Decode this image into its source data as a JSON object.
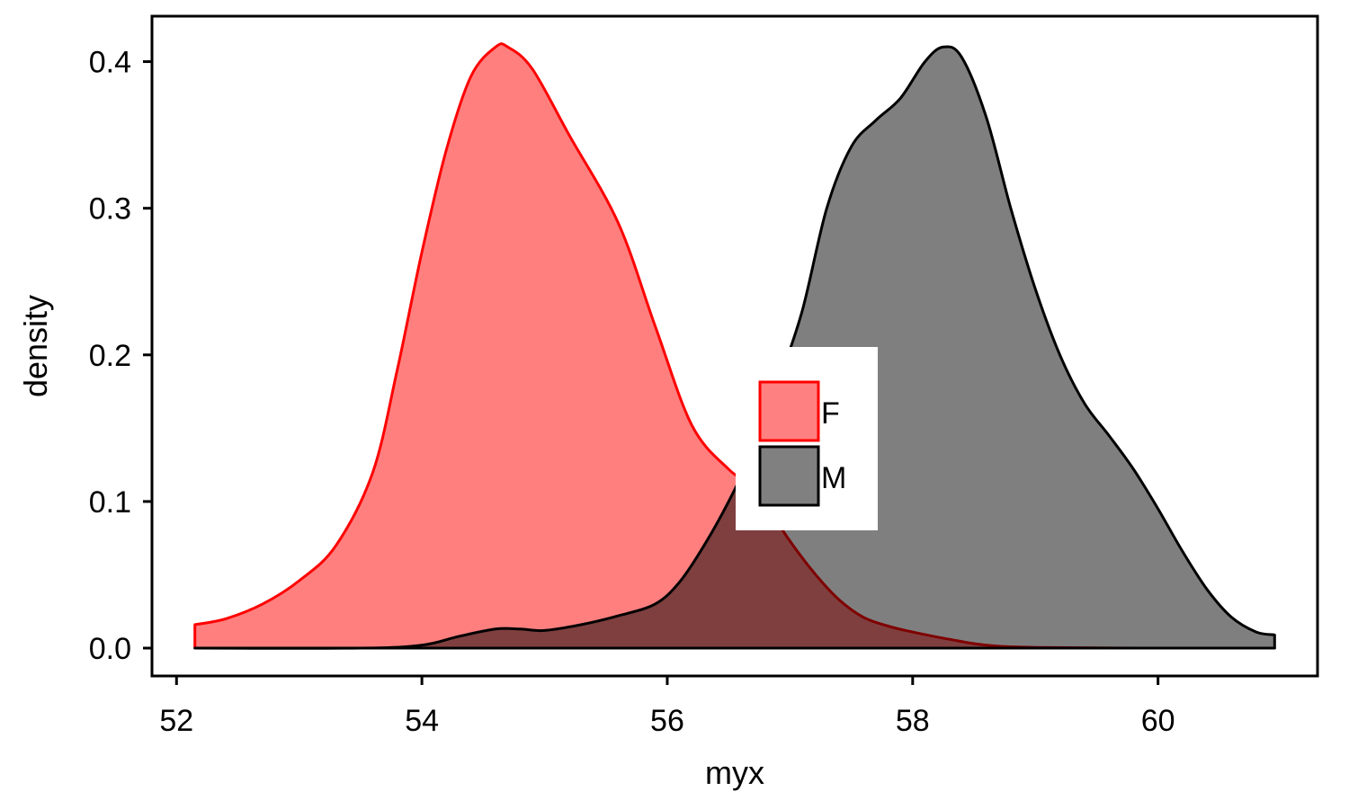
{
  "chart_data": {
    "type": "area",
    "subtype": "density",
    "xlabel": "myx",
    "ylabel": "density",
    "xlim": [
      51.8,
      61.3
    ],
    "ylim": [
      -0.019,
      0.431
    ],
    "x_ticks": [
      52,
      54,
      56,
      58,
      60
    ],
    "x_tick_labels": [
      "52",
      "54",
      "56",
      "58",
      "60"
    ],
    "y_ticks": [
      0.0,
      0.1,
      0.2,
      0.3,
      0.4
    ],
    "y_tick_labels": [
      "0.0",
      "0.1",
      "0.2",
      "0.3",
      "0.4"
    ],
    "grid": false,
    "legend": {
      "position": "center",
      "entries": [
        {
          "label": "F",
          "fill": "#ff8080",
          "stroke": "#ff0000"
        },
        {
          "label": "M",
          "fill": "#808080",
          "stroke": "#000000"
        }
      ]
    },
    "series": [
      {
        "name": "F",
        "fill": "#ff0000",
        "fill_opacity": 0.5,
        "stroke": "#ff0000",
        "points": [
          [
            52.15,
            0.016
          ],
          [
            52.4,
            0.02
          ],
          [
            52.7,
            0.03
          ],
          [
            53.0,
            0.046
          ],
          [
            53.3,
            0.07
          ],
          [
            53.6,
            0.12
          ],
          [
            53.8,
            0.19
          ],
          [
            54.0,
            0.27
          ],
          [
            54.2,
            0.34
          ],
          [
            54.4,
            0.39
          ],
          [
            54.6,
            0.41
          ],
          [
            54.7,
            0.41
          ],
          [
            54.9,
            0.395
          ],
          [
            55.2,
            0.35
          ],
          [
            55.6,
            0.29
          ],
          [
            55.9,
            0.22
          ],
          [
            56.2,
            0.152
          ],
          [
            56.5,
            0.122
          ],
          [
            56.7,
            0.11
          ],
          [
            56.85,
            0.092
          ],
          [
            57.0,
            0.073
          ],
          [
            57.2,
            0.051
          ],
          [
            57.4,
            0.033
          ],
          [
            57.6,
            0.021
          ],
          [
            57.8,
            0.015
          ],
          [
            58.0,
            0.011
          ],
          [
            58.3,
            0.006
          ],
          [
            58.6,
            0.002
          ],
          [
            59.0,
            0.0005
          ],
          [
            60.0,
            0.0
          ],
          [
            60.95,
            0.0
          ]
        ]
      },
      {
        "name": "M",
        "fill": "#000000",
        "fill_opacity": 0.5,
        "stroke": "#000000",
        "points": [
          [
            52.15,
            0.0
          ],
          [
            53.5,
            0.0
          ],
          [
            54.0,
            0.002
          ],
          [
            54.3,
            0.008
          ],
          [
            54.6,
            0.013
          ],
          [
            54.8,
            0.013
          ],
          [
            55.0,
            0.012
          ],
          [
            55.3,
            0.016
          ],
          [
            55.6,
            0.022
          ],
          [
            55.9,
            0.03
          ],
          [
            56.1,
            0.045
          ],
          [
            56.3,
            0.07
          ],
          [
            56.5,
            0.1
          ],
          [
            56.7,
            0.135
          ],
          [
            56.9,
            0.18
          ],
          [
            57.1,
            0.23
          ],
          [
            57.3,
            0.3
          ],
          [
            57.5,
            0.342
          ],
          [
            57.7,
            0.36
          ],
          [
            57.9,
            0.375
          ],
          [
            58.1,
            0.4
          ],
          [
            58.25,
            0.41
          ],
          [
            58.4,
            0.403
          ],
          [
            58.6,
            0.362
          ],
          [
            58.8,
            0.3
          ],
          [
            59.0,
            0.245
          ],
          [
            59.2,
            0.2
          ],
          [
            59.4,
            0.167
          ],
          [
            59.6,
            0.145
          ],
          [
            59.8,
            0.122
          ],
          [
            60.0,
            0.095
          ],
          [
            60.2,
            0.066
          ],
          [
            60.4,
            0.04
          ],
          [
            60.6,
            0.021
          ],
          [
            60.8,
            0.011
          ],
          [
            60.95,
            0.009
          ]
        ]
      }
    ]
  }
}
